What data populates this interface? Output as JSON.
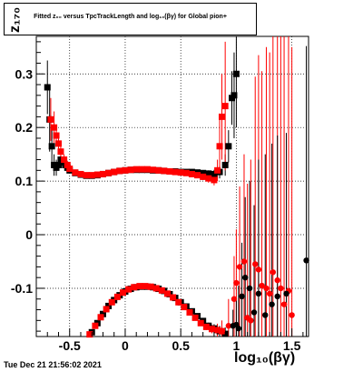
{
  "title": "Fitted  z₀₀  versus TpcTrackLength and log₁₀(βγ) for Global pion+",
  "timestamp": "Tue Dec 21 21:56:02 2021",
  "chart_data": {
    "type": "scatter",
    "xlabel": "log₁₀(βγ)",
    "ylabel": "z₁₇₀",
    "xlim": [
      -0.8,
      1.65
    ],
    "ylim": [
      -0.19,
      0.37
    ],
    "x_ticks": [
      -0.5,
      0,
      0.5,
      1,
      1.5
    ],
    "x_tick_labels": [
      "-0.5",
      "0",
      "0.5",
      "1",
      "1.5"
    ],
    "y_ticks": [
      -0.1,
      0,
      0.1,
      0.2,
      0.3
    ],
    "y_tick_labels": [
      "-0.1",
      "0",
      "0.1",
      "0.2",
      "0.3"
    ],
    "grid": true,
    "series": [
      {
        "color": "#000000",
        "marker": "square",
        "x": [
          -0.7,
          -0.68,
          -0.66,
          -0.64,
          -0.62,
          -0.6,
          -0.58,
          -0.56,
          -0.54,
          -0.52,
          -0.5,
          -0.45,
          -0.4,
          -0.35,
          -0.3,
          -0.25,
          -0.2,
          -0.15,
          -0.1,
          -0.05,
          0,
          0.05,
          0.1,
          0.15,
          0.2,
          0.25,
          0.3,
          0.35,
          0.4,
          0.45,
          0.5,
          0.55,
          0.6,
          0.65,
          0.7,
          0.75,
          0.8,
          0.85,
          0.9,
          0.93,
          0.96,
          0.98,
          1.0
        ],
        "y": [
          0.275,
          0.215,
          0.165,
          0.13,
          0.125,
          0.13,
          0.14,
          0.135,
          0.13,
          0.125,
          0.12,
          0.115,
          0.112,
          0.11,
          0.11,
          0.111,
          0.113,
          0.115,
          0.117,
          0.119,
          0.12,
          0.121,
          0.121,
          0.121,
          0.121,
          0.12,
          0.12,
          0.119,
          0.118,
          0.118,
          0.117,
          0.117,
          0.117,
          0.116,
          0.115,
          0.114,
          0.113,
          0.117,
          0.13,
          0.165,
          0.255,
          0.26,
          0.3
        ],
        "err": [
          0.05,
          0.06,
          0.03,
          0.02,
          0.015,
          0.01,
          0.008,
          0.006,
          0.005,
          0.004,
          0.003,
          0.003,
          0.003,
          0.003,
          0.003,
          0.003,
          0.003,
          0.003,
          0.003,
          0.003,
          0.003,
          0.003,
          0.003,
          0.003,
          0.003,
          0.003,
          0.003,
          0.003,
          0.003,
          0.003,
          0.003,
          0.003,
          0.004,
          0.004,
          0.005,
          0.006,
          0.008,
          0.012,
          0.02,
          0.03,
          0.05,
          0.08,
          0.1
        ]
      },
      {
        "color": "#ff0000",
        "marker": "square",
        "x": [
          -0.67,
          -0.64,
          -0.62,
          -0.6,
          -0.58,
          -0.55,
          -0.52,
          -0.5,
          -0.45,
          -0.4,
          -0.35,
          -0.3,
          -0.25,
          -0.2,
          -0.15,
          -0.1,
          -0.05,
          0,
          0.05,
          0.1,
          0.15,
          0.2,
          0.25,
          0.3,
          0.35,
          0.4,
          0.45,
          0.5,
          0.55,
          0.6,
          0.65,
          0.7,
          0.75,
          0.8,
          0.83,
          0.85,
          0.87,
          0.9
        ],
        "y": [
          0.215,
          0.2,
          0.185,
          0.17,
          0.155,
          0.14,
          0.13,
          0.123,
          0.116,
          0.113,
          0.111,
          0.111,
          0.112,
          0.113,
          0.115,
          0.117,
          0.119,
          0.12,
          0.121,
          0.122,
          0.122,
          0.122,
          0.121,
          0.12,
          0.119,
          0.118,
          0.117,
          0.116,
          0.115,
          0.113,
          0.111,
          0.108,
          0.105,
          0.102,
          0.12,
          0.165,
          0.22,
          0.24
        ],
        "err": [
          0.04,
          0.03,
          0.02,
          0.015,
          0.012,
          0.01,
          0.008,
          0.006,
          0.004,
          0.003,
          0.003,
          0.003,
          0.003,
          0.003,
          0.003,
          0.003,
          0.003,
          0.003,
          0.003,
          0.003,
          0.003,
          0.003,
          0.003,
          0.003,
          0.003,
          0.003,
          0.003,
          0.003,
          0.003,
          0.004,
          0.005,
          0.006,
          0.008,
          0.01,
          0.02,
          0.05,
          0.08,
          0.12
        ]
      },
      {
        "color": "#000000",
        "marker": "square",
        "x": [
          -0.3,
          -0.25,
          -0.2,
          -0.15,
          -0.1,
          -0.05,
          0,
          0.05,
          0.1,
          0.15,
          0.2,
          0.25,
          0.3,
          0.35,
          0.4,
          0.45,
          0.5,
          0.55,
          0.6,
          0.65,
          0.7,
          0.75,
          0.8,
          0.85,
          0.9
        ],
        "y": [
          -0.182,
          -0.165,
          -0.148,
          -0.133,
          -0.122,
          -0.113,
          -0.106,
          -0.101,
          -0.098,
          -0.097,
          -0.097,
          -0.098,
          -0.101,
          -0.105,
          -0.111,
          -0.118,
          -0.126,
          -0.134,
          -0.143,
          -0.152,
          -0.161,
          -0.17,
          -0.175,
          -0.18,
          -0.185
        ],
        "err": [
          0.004,
          0.003,
          0.003,
          0.003,
          0.003,
          0.003,
          0.003,
          0.003,
          0.003,
          0.003,
          0.003,
          0.003,
          0.003,
          0.003,
          0.003,
          0.003,
          0.003,
          0.003,
          0.004,
          0.004,
          0.005,
          0.006,
          0.008,
          0.01,
          0.012
        ]
      },
      {
        "color": "#ff0000",
        "marker": "square",
        "x": [
          -0.32,
          -0.27,
          -0.22,
          -0.17,
          -0.12,
          -0.07,
          -0.02,
          0.03,
          0.08,
          0.13,
          0.18,
          0.23,
          0.28,
          0.33,
          0.38,
          0.43,
          0.48,
          0.53,
          0.58,
          0.63,
          0.68,
          0.73,
          0.78,
          0.83,
          0.87
        ],
        "y": [
          -0.186,
          -0.17,
          -0.154,
          -0.139,
          -0.126,
          -0.116,
          -0.108,
          -0.102,
          -0.098,
          -0.096,
          -0.096,
          -0.097,
          -0.1,
          -0.104,
          -0.11,
          -0.117,
          -0.126,
          -0.135,
          -0.145,
          -0.155,
          -0.165,
          -0.172,
          -0.176,
          -0.178,
          -0.18
        ],
        "err": [
          0.004,
          0.003,
          0.003,
          0.003,
          0.003,
          0.003,
          0.003,
          0.003,
          0.003,
          0.003,
          0.003,
          0.003,
          0.003,
          0.003,
          0.003,
          0.003,
          0.003,
          0.003,
          0.004,
          0.004,
          0.005,
          0.006,
          0.008,
          0.012,
          0.02
        ]
      },
      {
        "color": "#ff0000",
        "marker": "circle",
        "x": [
          0.93,
          0.98,
          1.0,
          1.03,
          1.07,
          1.1,
          1.13,
          1.17,
          1.2,
          1.23,
          1.27,
          1.3,
          1.33,
          1.37,
          1.4,
          1.43,
          1.47,
          1.5
        ],
        "y": [
          -0.17,
          -0.12,
          -0.09,
          -0.06,
          -0.05,
          -0.155,
          -0.16,
          -0.055,
          -0.065,
          -0.095,
          -0.1,
          -0.11,
          -0.07,
          -0.085,
          -0.1,
          -0.13,
          -0.105,
          -0.15
        ],
        "err": [
          0.05,
          0.08,
          0.1,
          0.15,
          0.2,
          0.25,
          0.3,
          0.35,
          0.4,
          0.4,
          0.45,
          0.45,
          0.5,
          0.5,
          0.5,
          0.5,
          0.5,
          0.5
        ]
      },
      {
        "color": "#000000",
        "marker": "circle",
        "x": [
          0.97,
          1.0,
          1.02,
          1.05,
          1.08,
          1.12,
          1.16,
          1.2,
          1.26,
          1.32,
          1.37,
          1.45,
          1.63
        ],
        "y": [
          -0.17,
          -0.168,
          -0.175,
          -0.115,
          -0.08,
          -0.1,
          -0.145,
          -0.11,
          -0.15,
          -0.13,
          -0.115,
          -0.11,
          -0.048
        ],
        "err": [
          0.03,
          0.05,
          0.08,
          0.1,
          0.15,
          0.2,
          0.2,
          0.25,
          0.3,
          0.3,
          0.3,
          0.3,
          0.4
        ]
      }
    ]
  }
}
